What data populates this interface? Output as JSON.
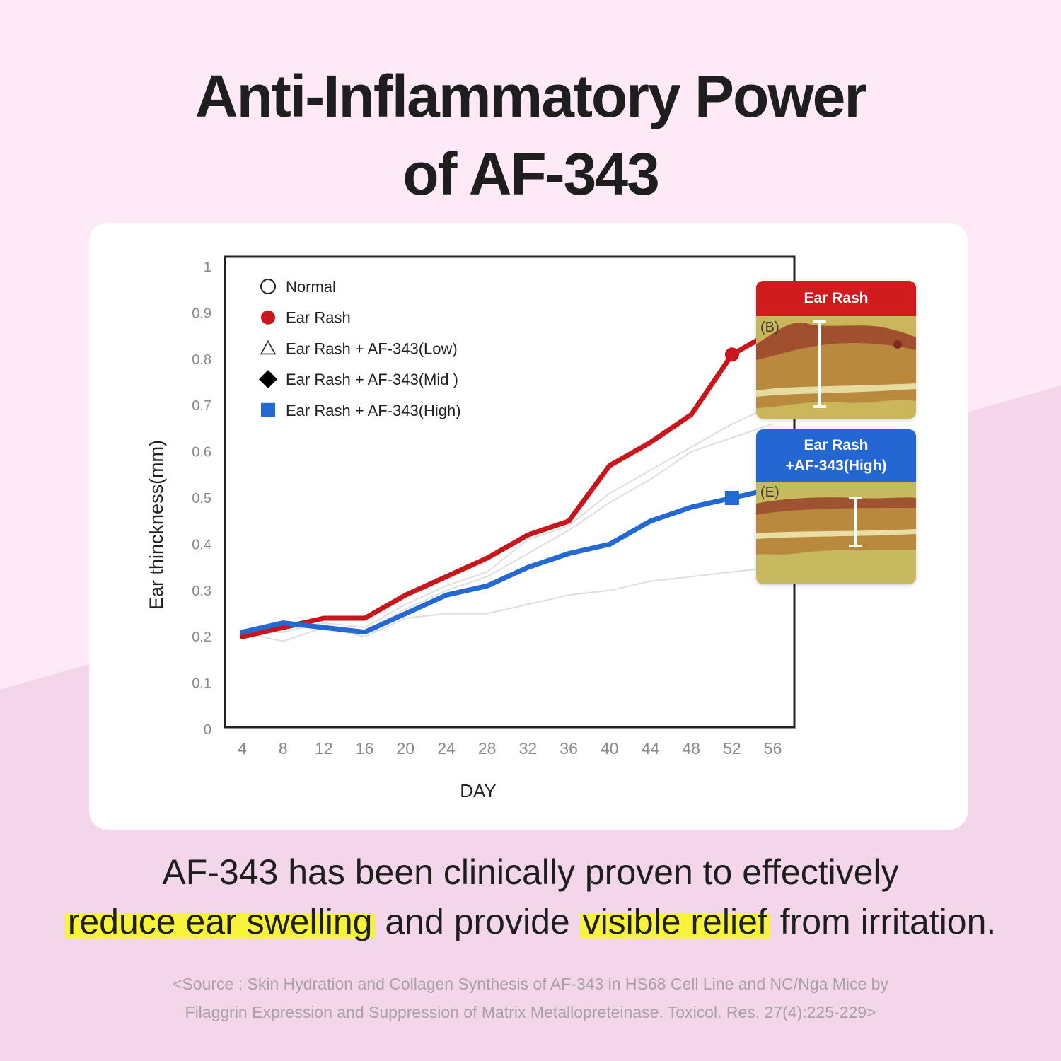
{
  "title": {
    "line1": "Anti-Inflammatory Power",
    "line2": "of AF-343"
  },
  "colors": {
    "background_top": "#fdeaf6",
    "background_bottom": "#f4d6ea",
    "ear_rash": "#c8161c",
    "high": "#2469d3",
    "faint": "#d9d9d9",
    "highlight": "#f7f23a"
  },
  "chart_data": {
    "type": "line",
    "xlabel": "DAY",
    "ylabel": "Ear thinckness(mm)",
    "x": [
      4,
      8,
      12,
      16,
      20,
      24,
      28,
      32,
      36,
      40,
      44,
      48,
      52,
      56
    ],
    "x_ticks": [
      "4",
      "8",
      "12",
      "16",
      "20",
      "24",
      "28",
      "32",
      "36",
      "40",
      "44",
      "48",
      "52",
      "56"
    ],
    "y_ticks": [
      "0",
      "0.1",
      "0.2",
      "0.3",
      "0.4",
      "0.5",
      "0.6",
      "0.7",
      "0.8",
      "0.9",
      "1"
    ],
    "ylim": [
      0,
      1
    ],
    "grid": false,
    "legend": "top-left",
    "series": [
      {
        "name": "Normal",
        "marker": "open-circle",
        "color": "#dedede",
        "values": [
          0.21,
          0.19,
          0.22,
          0.2,
          0.24,
          0.25,
          0.25,
          0.27,
          0.29,
          0.3,
          0.32,
          0.33,
          0.34,
          0.35
        ]
      },
      {
        "name": "Ear Rash",
        "marker": "filled-circle",
        "color": "#c8161c",
        "values": [
          0.2,
          0.22,
          0.24,
          0.24,
          0.29,
          0.33,
          0.37,
          0.42,
          0.45,
          0.57,
          0.62,
          0.68,
          0.81,
          0.86
        ]
      },
      {
        "name": "Ear Rash + AF-343(Low)",
        "marker": "open-triangle",
        "color": "#dedede",
        "values": [
          0.21,
          0.21,
          0.23,
          0.22,
          0.27,
          0.31,
          0.34,
          0.41,
          0.44,
          0.51,
          0.56,
          0.61,
          0.66,
          0.7
        ]
      },
      {
        "name": "Ear Rash + AF-343(Mid )",
        "marker": "filled-diamond",
        "color": "#dedede",
        "values": [
          0.21,
          0.22,
          0.22,
          0.21,
          0.26,
          0.3,
          0.33,
          0.38,
          0.43,
          0.49,
          0.54,
          0.6,
          0.63,
          0.66
        ]
      },
      {
        "name": "Ear Rash + AF-343(High)",
        "marker": "filled-square",
        "color": "#2469d3",
        "values": [
          0.21,
          0.23,
          0.22,
          0.21,
          0.25,
          0.29,
          0.31,
          0.35,
          0.38,
          0.4,
          0.45,
          0.48,
          0.5,
          0.52
        ]
      }
    ]
  },
  "insets": {
    "ear_rash": {
      "title": "Ear Rash",
      "panel": "(B)"
    },
    "high": {
      "title_line1": "Ear Rash",
      "title_line2": "+AF-343(High)",
      "panel": "(E)"
    }
  },
  "body": {
    "line1": "AF-343 has been clinically proven to effectively",
    "line2_hl1": "reduce ear swelling",
    "line2_mid": " and provide ",
    "line2_hl2": "visible relief",
    "line2_end": " from irritation."
  },
  "source": {
    "line1": "<Source : Skin Hydration and Collagen Synthesis of AF-343 in HS68 Cell Line and NC/Nga Mice by",
    "line2": "Filaggrin Expression and Suppression of Matrix Metallopreteinase. Toxicol. Res. 27(4):225-229>"
  }
}
